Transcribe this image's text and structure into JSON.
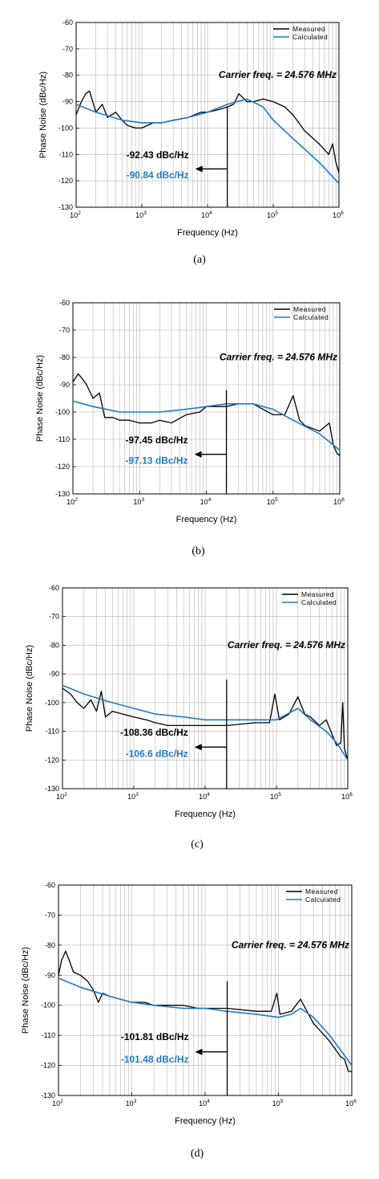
{
  "style": {
    "measured_color": "#000000",
    "calculated_color": "#1f7ac8",
    "grid_color": "#b4b4b4"
  },
  "chart_data": [
    {
      "type": "line",
      "caption": "(a)",
      "xlabel": "Frequency (Hz)",
      "ylabel": "Phase Noise (dBc/Hz)",
      "x_scale": "log",
      "xlim": [
        100,
        1000000
      ],
      "ylim": [
        -130,
        -60
      ],
      "y_ticks": [
        -60,
        -70,
        -80,
        -90,
        -100,
        -110,
        -120,
        -130
      ],
      "x_tick_labels": [
        {
          "base": "10",
          "exp": "2"
        },
        {
          "base": "10",
          "exp": "3"
        },
        {
          "base": "10",
          "exp": "4"
        },
        {
          "base": "10",
          "exp": "5"
        },
        {
          "base": "10",
          "exp": "6"
        }
      ],
      "grid": true,
      "legend": {
        "position": "top-right",
        "entries": [
          "Measured",
          "Calculated"
        ]
      },
      "annotation_text": "Carrier freq. = 24.576 MHz",
      "marker_frequency": 20000,
      "integrated_measured": "-92.43 dBc/Hz",
      "integrated_calculated": "-90.84 dBc/Hz",
      "series": [
        {
          "name": "Measured",
          "x": [
            100,
            120,
            140,
            160,
            200,
            250,
            300,
            400,
            500,
            600,
            800,
            1000,
            1500,
            2000,
            3000,
            5000,
            8000,
            10000,
            15000,
            20000,
            25000,
            30000,
            40000,
            50000,
            70000,
            100000,
            150000,
            200000,
            300000,
            500000,
            700000,
            800000,
            900000,
            1000000
          ],
          "y": [
            -95,
            -90,
            -87,
            -86,
            -94,
            -91,
            -96,
            -94,
            -97,
            -99,
            -100,
            -100,
            -98,
            -98,
            -97,
            -96,
            -94,
            -94,
            -93,
            -92,
            -91,
            -87,
            -90,
            -90,
            -89,
            -90,
            -92,
            -95,
            -101,
            -106,
            -110,
            -106,
            -113,
            -117
          ]
        },
        {
          "name": "Calculated",
          "x": [
            100,
            200,
            500,
            1000,
            2000,
            5000,
            10000,
            20000,
            40000,
            70000,
            100000,
            200000,
            500000,
            1000000
          ],
          "y": [
            -91,
            -94,
            -97,
            -98,
            -98,
            -96,
            -94,
            -91,
            -89,
            -92,
            -97,
            -104,
            -113,
            -121
          ]
        }
      ]
    },
    {
      "type": "line",
      "caption": "(b)",
      "xlabel": "Frequency (Hz)",
      "ylabel": "Phase Noise (dBc/Hz)",
      "x_scale": "log",
      "xlim": [
        100,
        1000000
      ],
      "ylim": [
        -130,
        -60
      ],
      "y_ticks": [
        -60,
        -70,
        -80,
        -90,
        -100,
        -110,
        -120,
        -130
      ],
      "x_tick_labels": [
        {
          "base": "10",
          "exp": "2"
        },
        {
          "base": "10",
          "exp": "3"
        },
        {
          "base": "10",
          "exp": "4"
        },
        {
          "base": "10",
          "exp": "5"
        },
        {
          "base": "10",
          "exp": "6"
        }
      ],
      "grid": true,
      "legend": {
        "position": "top-right",
        "entries": [
          "Measured",
          "Calculated"
        ]
      },
      "annotation_text": "Carrier freq. = 24.576 MHz",
      "marker_frequency": 20000,
      "integrated_measured": "-97.45 dBc/Hz",
      "integrated_calculated": "-97.13 dBc/Hz",
      "series": [
        {
          "name": "Measured",
          "x": [
            100,
            120,
            140,
            160,
            200,
            250,
            300,
            400,
            500,
            700,
            1000,
            1500,
            2000,
            3000,
            5000,
            8000,
            10000,
            20000,
            30000,
            50000,
            100000,
            150000,
            200000,
            250000,
            300000,
            500000,
            700000,
            800000,
            900000,
            1000000
          ],
          "y": [
            -89,
            -86,
            -88,
            -90,
            -95,
            -93,
            -102,
            -102,
            -103,
            -103,
            -104,
            -104,
            -103,
            -104,
            -101,
            -100,
            -98,
            -98,
            -97,
            -97,
            -101,
            -101,
            -94,
            -103,
            -105,
            -107,
            -104,
            -112,
            -115,
            -116
          ]
        },
        {
          "name": "Calculated",
          "x": [
            100,
            200,
            500,
            1000,
            2000,
            5000,
            10000,
            20000,
            50000,
            100000,
            200000,
            500000,
            1000000
          ],
          "y": [
            -96,
            -98,
            -100,
            -100,
            -100,
            -99,
            -98,
            -97,
            -97,
            -99,
            -103,
            -108,
            -114
          ]
        }
      ]
    },
    {
      "type": "line",
      "caption": "(c)",
      "xlabel": "Frequency (Hz)",
      "ylabel": "Phase Noise (dBc/Hz)",
      "x_scale": "log",
      "xlim": [
        100,
        1000000
      ],
      "ylim": [
        -130,
        -60
      ],
      "y_ticks": [
        -60,
        -70,
        -80,
        -90,
        -100,
        -110,
        -120,
        -130
      ],
      "x_tick_labels": [
        {
          "base": "10",
          "exp": "2"
        },
        {
          "base": "10",
          "exp": "3"
        },
        {
          "base": "10",
          "exp": "4"
        },
        {
          "base": "10",
          "exp": "5"
        },
        {
          "base": "10",
          "exp": "6"
        }
      ],
      "grid": true,
      "legend": {
        "position": "top-right",
        "entries": [
          "Measured",
          "Calculated"
        ]
      },
      "annotation_text": "Carrier freq. = 24.576 MHz",
      "marker_frequency": 20000,
      "integrated_measured": "-108.36 dBc/Hz",
      "integrated_calculated": "-106.6 dBc/Hz",
      "series": [
        {
          "name": "Measured",
          "x": [
            100,
            130,
            160,
            200,
            250,
            300,
            350,
            400,
            500,
            700,
            1000,
            1500,
            2000,
            3000,
            5000,
            8000,
            10000,
            20000,
            50000,
            80000,
            95000,
            110000,
            150000,
            200000,
            250000,
            300000,
            400000,
            500000,
            600000,
            700000,
            800000,
            850000,
            900000,
            1000000
          ],
          "y": [
            -95,
            -97,
            -100,
            -102,
            -99,
            -103,
            -96,
            -105,
            -103,
            -104,
            -105,
            -106,
            -107,
            -108,
            -108,
            -108,
            -108,
            -108,
            -107,
            -107,
            -97,
            -106,
            -104,
            -98,
            -104,
            -105,
            -108,
            -106,
            -111,
            -115,
            -114,
            -100,
            -116,
            -120
          ]
        },
        {
          "name": "Calculated",
          "x": [
            100,
            200,
            500,
            1000,
            2000,
            5000,
            10000,
            20000,
            50000,
            100000,
            200000,
            300000,
            500000,
            700000,
            1000000
          ],
          "y": [
            -94,
            -97,
            -100,
            -102,
            -104,
            -105,
            -106,
            -106,
            -106,
            -106,
            -102,
            -106,
            -110,
            -114,
            -120
          ]
        }
      ]
    },
    {
      "type": "line",
      "caption": "(d)",
      "xlabel": "Frequency (Hz)",
      "ylabel": "Phase Noise (dBc/Hz)",
      "x_scale": "log",
      "xlim": [
        100,
        1000000
      ],
      "ylim": [
        -130,
        -60
      ],
      "y_ticks": [
        -60,
        -70,
        -80,
        -90,
        -100,
        -110,
        -120,
        -130
      ],
      "x_tick_labels": [
        {
          "base": "10",
          "exp": "2"
        },
        {
          "base": "10",
          "exp": "3"
        },
        {
          "base": "10",
          "exp": "4"
        },
        {
          "base": "10",
          "exp": "5"
        },
        {
          "base": "10",
          "exp": "6"
        }
      ],
      "grid": true,
      "legend": {
        "position": "top-right",
        "entries": [
          "Measured",
          "Calculated"
        ]
      },
      "annotation_text": "Carrier freq. = 24.576 MHz",
      "marker_frequency": 20000,
      "integrated_measured": "-101.81 dBc/Hz",
      "integrated_calculated": "-101.48 dBc/Hz",
      "series": [
        {
          "name": "Measured",
          "x": [
            100,
            110,
            125,
            140,
            160,
            200,
            250,
            300,
            350,
            400,
            500,
            700,
            1000,
            1500,
            2000,
            3000,
            5000,
            8000,
            10000,
            20000,
            50000,
            80000,
            95000,
            105000,
            150000,
            200000,
            300000,
            500000,
            700000,
            800000,
            900000,
            1000000
          ],
          "y": [
            -90,
            -85,
            -82,
            -85,
            -89,
            -90,
            -92,
            -95,
            -99,
            -96,
            -97,
            -98,
            -99,
            -99,
            -100,
            -100,
            -100,
            -101,
            -101,
            -101,
            -102,
            -102,
            -96,
            -103,
            -102,
            -98,
            -106,
            -112,
            -117,
            -118,
            -122,
            -122
          ]
        },
        {
          "name": "Calculated",
          "x": [
            100,
            200,
            500,
            1000,
            2000,
            5000,
            10000,
            20000,
            50000,
            100000,
            150000,
            200000,
            300000,
            500000,
            1000000
          ],
          "y": [
            -91,
            -94,
            -97,
            -99,
            -100,
            -101,
            -101,
            -102,
            -103,
            -104,
            -103,
            -101,
            -104,
            -110,
            -120
          ]
        }
      ]
    }
  ]
}
